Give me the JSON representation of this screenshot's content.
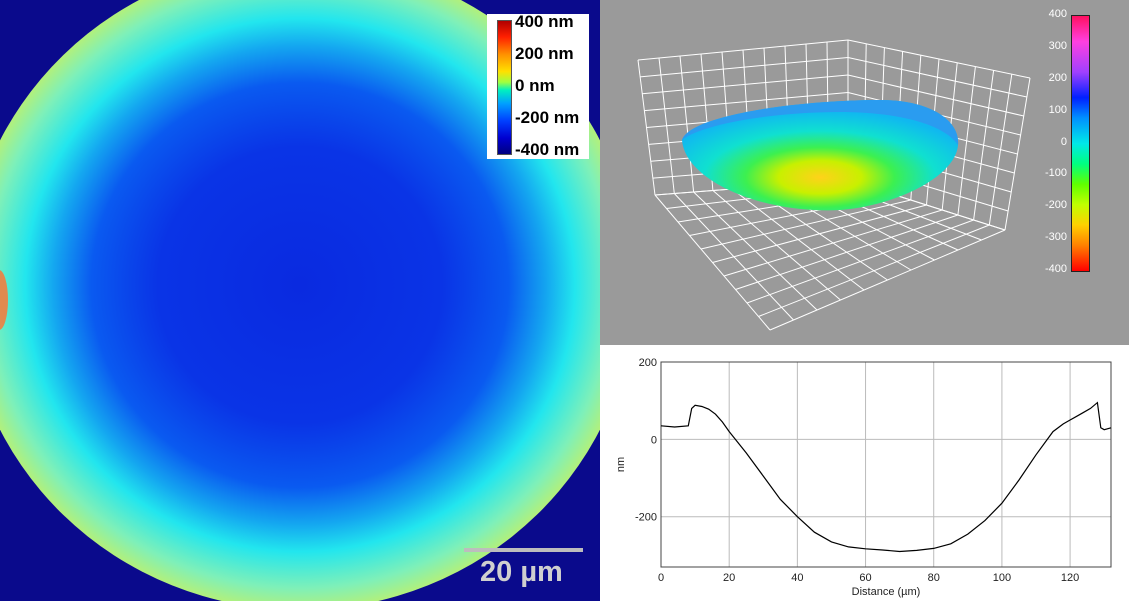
{
  "height_map": {
    "colorbar_labels": [
      "400 nm",
      "200 nm",
      "0 nm",
      "-200 nm",
      "-400 nm"
    ],
    "scale_bar_label": "20 µm",
    "colors": {
      "background": "#0a0a8c",
      "center": "#0a34e6",
      "rim": "#f2f02a"
    }
  },
  "surface_3d": {
    "colorbar_ticks": [
      "400",
      "300",
      "200",
      "100",
      "0",
      "-100",
      "-200",
      "-300",
      "-400"
    ],
    "background": "#9a9a9a"
  },
  "chart_data": {
    "type": "line",
    "title": "",
    "xlabel": "Distance (µm)",
    "ylabel": "nm",
    "xlim": [
      0,
      132
    ],
    "ylim": [
      -330,
      200
    ],
    "x_ticks": [
      0,
      20,
      40,
      60,
      80,
      100,
      120
    ],
    "y_ticks": [
      200,
      0,
      -200
    ],
    "grid": true,
    "series": [
      {
        "x": [
          0,
          4,
          8,
          9,
          10,
          12,
          14,
          16,
          18,
          20,
          25,
          30,
          35,
          40,
          45,
          50,
          55,
          60,
          65,
          70,
          75,
          80,
          85,
          90,
          95,
          100,
          105,
          110,
          115,
          118,
          120,
          122,
          124,
          126,
          128,
          129,
          130,
          132
        ],
        "y": [
          35,
          32,
          35,
          80,
          88,
          85,
          78,
          65,
          45,
          20,
          -35,
          -95,
          -155,
          -200,
          -240,
          -265,
          -278,
          -283,
          -286,
          -290,
          -287,
          -282,
          -270,
          -245,
          -210,
          -165,
          -105,
          -40,
          20,
          40,
          50,
          60,
          70,
          80,
          95,
          30,
          25,
          30
        ]
      }
    ]
  }
}
